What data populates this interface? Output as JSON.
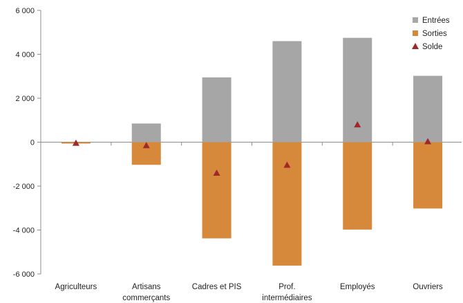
{
  "chart_data": {
    "type": "bar",
    "categories": [
      [
        "Agriculteurs"
      ],
      [
        "Artisans",
        "commerçants"
      ],
      [
        "Cadres et PIS"
      ],
      [
        "Prof.",
        "intermédiaires"
      ],
      [
        "Employés"
      ],
      [
        "Ouvriers"
      ]
    ],
    "series": [
      {
        "name": "Entrées",
        "kind": "bar",
        "color": "#A6A6A6",
        "values": [
          0,
          850,
          2950,
          4600,
          4750,
          3020
        ]
      },
      {
        "name": "Sorties",
        "kind": "bar",
        "color": "#D6893A",
        "values": [
          -60,
          -1030,
          -4380,
          -5620,
          -3980,
          -3020
        ]
      },
      {
        "name": "Solde",
        "kind": "marker",
        "marker": "triangle",
        "color": "#A0282A",
        "values": [
          -40,
          -150,
          -1400,
          -1040,
          800,
          30
        ]
      }
    ],
    "yticks": [
      "6 000",
      "4 000",
      "2 000",
      "0",
      "-2 000",
      "-4 000",
      "-6 000"
    ],
    "ytick_values": [
      6000,
      4000,
      2000,
      0,
      -2000,
      -4000,
      -6000
    ],
    "ylim": [
      -6000,
      6000
    ],
    "legend_position": "top-right",
    "grid": false
  }
}
